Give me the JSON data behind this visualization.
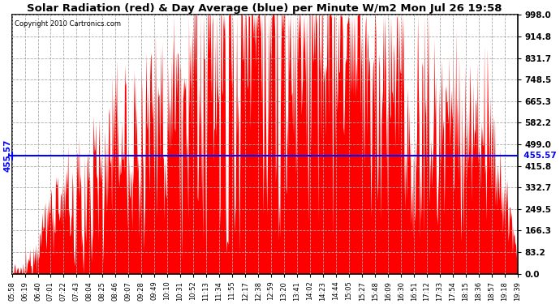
{
  "title": "Solar Radiation (red) & Day Average (blue) per Minute W/m2 Mon Jul 26 19:58",
  "copyright": "Copyright 2010 Cartronics.com",
  "avg_value": 455.57,
  "y_ticks": [
    0.0,
    83.2,
    166.3,
    249.5,
    332.7,
    415.8,
    499.0,
    582.2,
    665.3,
    748.5,
    831.7,
    914.8,
    998.0
  ],
  "y_max": 998.0,
  "y_min": 0.0,
  "bar_color": "#FF0000",
  "avg_line_color": "#0000FF",
  "background_color": "#FFFFFF",
  "plot_bg_color": "#FFFFFF",
  "grid_color": "#AAAAAA",
  "x_labels": [
    "05:58",
    "06:19",
    "06:40",
    "07:01",
    "07:22",
    "07:43",
    "08:04",
    "08:25",
    "08:46",
    "09:07",
    "09:28",
    "09:49",
    "10:10",
    "10:31",
    "10:52",
    "11:13",
    "11:34",
    "11:55",
    "12:17",
    "12:38",
    "12:59",
    "13:20",
    "13:41",
    "14:02",
    "14:23",
    "14:44",
    "15:05",
    "15:27",
    "15:48",
    "16:09",
    "16:30",
    "16:51",
    "17:12",
    "17:33",
    "17:54",
    "18:15",
    "18:36",
    "18:57",
    "19:18",
    "19:39"
  ],
  "figsize": [
    6.9,
    3.75
  ],
  "dpi": 100
}
